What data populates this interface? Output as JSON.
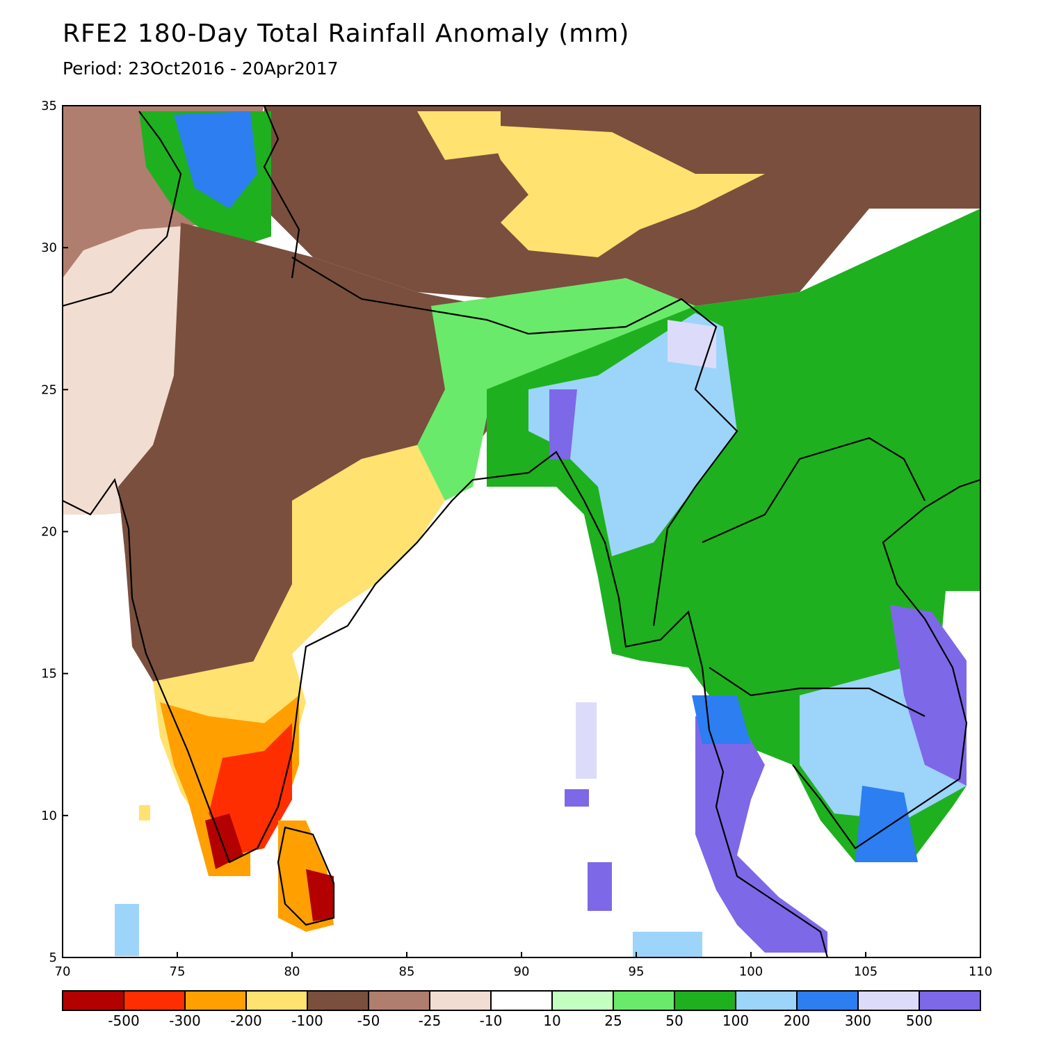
{
  "title": "RFE2 180-Day Total Rainfall Anomaly (mm)",
  "subtitle": "Period: 23Oct2016 - 20Apr2017",
  "map": {
    "lon_range": [
      70,
      110
    ],
    "lat_range": [
      5,
      35
    ],
    "x_ticks": [
      "70",
      "75",
      "80",
      "85",
      "90",
      "95",
      "100",
      "105",
      "110"
    ],
    "y_ticks": [
      "35",
      "30",
      "25",
      "20",
      "15",
      "10",
      "5"
    ]
  },
  "legend": {
    "colors": [
      "#b30000",
      "#ff2e00",
      "#ffa000",
      "#ffe270",
      "#7a4f3e",
      "#b07e6e",
      "#f2ddd2",
      "#ffffff",
      "#c4ffc2",
      "#6aea6a",
      "#1fb01f",
      "#9dd4fa",
      "#2d7ef0",
      "#dcdcfa",
      "#7d68e8"
    ],
    "labels": [
      "-500",
      "-300",
      "-200",
      "-100",
      "-50",
      "-25",
      "-10",
      "10",
      "25",
      "50",
      "100",
      "200",
      "300",
      "500"
    ]
  }
}
